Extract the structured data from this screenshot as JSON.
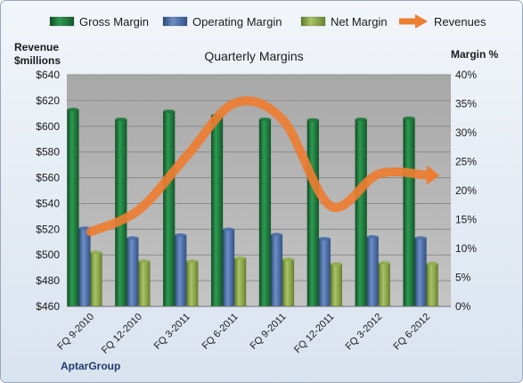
{
  "chart_data": {
    "type": "bar",
    "title": "Quarterly Margins",
    "categories": [
      "FQ 9-2010",
      "FQ 12-2010",
      "FQ 3-2011",
      "FQ 6-2011",
      "FQ 9-2011",
      "FQ 12-2011",
      "FQ 3-2012",
      "FQ 6-2012"
    ],
    "series": [
      {
        "name": "Gross Margin",
        "axis": "right",
        "kind": "bar",
        "values": [
          34.0,
          32.3,
          33.7,
          33.0,
          32.3,
          32.2,
          32.3,
          32.5
        ]
      },
      {
        "name": "Operating Margin",
        "axis": "right",
        "kind": "bar",
        "values": [
          13.5,
          11.8,
          12.3,
          13.3,
          12.4,
          11.7,
          12.0,
          11.8
        ]
      },
      {
        "name": "Net Margin",
        "axis": "right",
        "kind": "bar",
        "values": [
          9.3,
          7.8,
          7.8,
          8.3,
          8.1,
          7.3,
          7.5,
          7.4
        ]
      },
      {
        "name": "Revenues",
        "axis": "left",
        "kind": "line",
        "values": [
          518,
          535,
          577,
          618,
          605,
          538,
          563,
          562
        ]
      }
    ],
    "y_left": {
      "label_line1": "Revenue",
      "label_line2": "$millions",
      "min": 460,
      "max": 640,
      "step": 20,
      "tick_prefix": "$"
    },
    "y_right": {
      "label": "Margin %",
      "min": 0,
      "max": 40,
      "step": 5,
      "tick_suffix": "%"
    },
    "source_label": "AptarGroup",
    "legend_position": "top",
    "grid": true,
    "colors": {
      "gross": "#1e7a3c",
      "operating": "#4a6fa8",
      "net": "#8fae4a",
      "revenues": "#ed7d31",
      "plot_bg": "#b5b5b5",
      "frame": "#e6edf6"
    }
  }
}
